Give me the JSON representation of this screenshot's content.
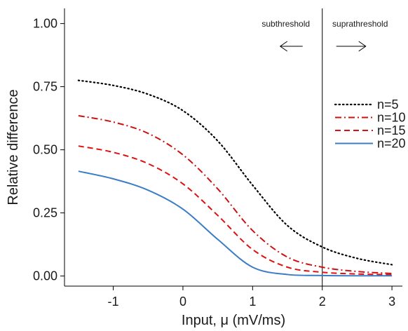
{
  "chart_data": {
    "type": "line",
    "xlabel": "Input, μ (mV/ms)",
    "ylabel": "Relative difference",
    "xlim": [
      -1.7,
      3.15
    ],
    "ylim": [
      -0.04,
      1.06
    ],
    "xticks": [
      -1,
      0,
      1,
      2,
      3
    ],
    "xtick_labels": [
      "-1",
      "0",
      "1",
      "2",
      "3"
    ],
    "yticks": [
      0,
      0.25,
      0.5,
      0.75,
      1.0
    ],
    "ytick_labels": [
      "0.00",
      "0.25",
      "0.50",
      "0.75",
      "1.00"
    ],
    "grid": false,
    "legend_position": "right",
    "threshold_x": 2,
    "annotations": {
      "left_label": "subthreshold",
      "right_label": "suprathreshold",
      "left_arrow": "left-arrow-icon",
      "right_arrow": "right-arrow-icon"
    },
    "series": [
      {
        "name": "n=5",
        "color": "#000000",
        "dash": "dotted",
        "x": [
          -1.5,
          -1.0,
          -0.5,
          0.0,
          0.5,
          1.0,
          1.5,
          2.0,
          2.5,
          3.0
        ],
        "y": [
          0.775,
          0.755,
          0.72,
          0.655,
          0.535,
          0.36,
          0.2,
          0.115,
          0.07,
          0.045
        ]
      },
      {
        "name": "n=10",
        "color": "#cc1111",
        "dash": "dashdot",
        "x": [
          -1.5,
          -1.0,
          -0.5,
          0.0,
          0.5,
          1.0,
          1.5,
          2.0,
          2.5,
          3.0
        ],
        "y": [
          0.635,
          0.61,
          0.565,
          0.48,
          0.345,
          0.18,
          0.075,
          0.035,
          0.018,
          0.01
        ]
      },
      {
        "name": "n=15",
        "color": "#dd1111",
        "dash": "dashed",
        "x": [
          -1.5,
          -1.0,
          -0.5,
          0.0,
          0.5,
          1.0,
          1.5,
          2.0,
          2.5,
          3.0
        ],
        "y": [
          0.515,
          0.49,
          0.445,
          0.365,
          0.24,
          0.105,
          0.035,
          0.015,
          0.008,
          0.005
        ]
      },
      {
        "name": "n=20",
        "color": "#3b7dc4",
        "dash": "solid",
        "x": [
          -1.5,
          -1.0,
          -0.5,
          0.0,
          0.5,
          1.0,
          1.5,
          2.0,
          2.5,
          3.0
        ],
        "y": [
          0.415,
          0.385,
          0.34,
          0.265,
          0.145,
          0.035,
          0.006,
          0.002,
          0.001,
          0.001
        ]
      }
    ]
  }
}
